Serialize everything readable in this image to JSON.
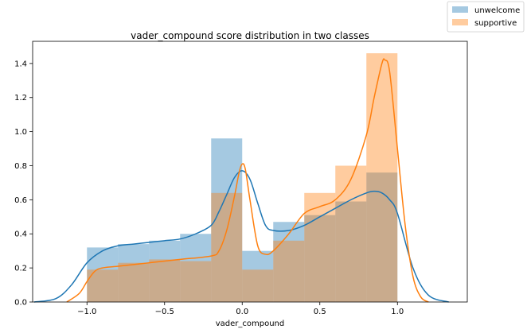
{
  "chart_data": {
    "type": "bar",
    "title": "vader_compound score distribution in two classes",
    "xlabel": "vader_compound",
    "ylabel": "",
    "xlim": [
      -1.35,
      1.45
    ],
    "ylim": [
      0,
      1.53
    ],
    "grid": false,
    "legend_position": "top-right (outside figure)",
    "xticks": [
      -1.0,
      -0.5,
      0.0,
      0.5,
      1.0
    ],
    "xtick_labels": [
      "−1.0",
      "−0.5",
      "0.0",
      "0.5",
      "1.0"
    ],
    "yticks": [
      0.0,
      0.2,
      0.4,
      0.6,
      0.8,
      1.0,
      1.2,
      1.4
    ],
    "ytick_labels": [
      "0.0",
      "0.2",
      "0.4",
      "0.6",
      "0.8",
      "1.0",
      "1.2",
      "1.4"
    ],
    "bin_edges": [
      -1.0,
      -0.8,
      -0.6,
      -0.4,
      -0.2,
      0.0,
      0.2,
      0.4,
      0.6,
      0.8,
      1.0
    ],
    "series": [
      {
        "name": "unwelcome",
        "color": "#1f77b4",
        "hist_values": [
          0.32,
          0.34,
          0.36,
          0.4,
          0.96,
          0.3,
          0.47,
          0.51,
          0.59,
          0.76
        ],
        "kde_x": [
          -1.34,
          -1.2,
          -1.1,
          -1.0,
          -0.9,
          -0.8,
          -0.7,
          -0.6,
          -0.5,
          -0.4,
          -0.3,
          -0.2,
          -0.15,
          -0.1,
          -0.05,
          0.0,
          0.05,
          0.1,
          0.15,
          0.2,
          0.3,
          0.4,
          0.5,
          0.6,
          0.7,
          0.8,
          0.85,
          0.9,
          0.95,
          1.0,
          1.1,
          1.2,
          1.33
        ],
        "kde_y": [
          0.0,
          0.02,
          0.1,
          0.23,
          0.3,
          0.33,
          0.34,
          0.35,
          0.36,
          0.37,
          0.4,
          0.45,
          0.53,
          0.63,
          0.73,
          0.77,
          0.72,
          0.58,
          0.45,
          0.42,
          0.42,
          0.45,
          0.5,
          0.55,
          0.6,
          0.64,
          0.65,
          0.64,
          0.6,
          0.52,
          0.2,
          0.04,
          0.0
        ]
      },
      {
        "name": "supportive",
        "color": "#ff7f0e",
        "hist_values": [
          0.19,
          0.23,
          0.25,
          0.24,
          0.64,
          0.19,
          0.36,
          0.64,
          0.8,
          1.46
        ],
        "kde_x": [
          -1.13,
          -1.05,
          -1.0,
          -0.95,
          -0.9,
          -0.8,
          -0.6,
          -0.4,
          -0.2,
          -0.15,
          -0.1,
          -0.05,
          -0.02,
          0.0,
          0.02,
          0.05,
          0.1,
          0.15,
          0.2,
          0.3,
          0.4,
          0.5,
          0.6,
          0.7,
          0.8,
          0.85,
          0.9,
          0.92,
          0.95,
          1.0,
          1.05,
          1.1,
          1.15,
          1.2
        ],
        "kde_y": [
          0.0,
          0.05,
          0.12,
          0.18,
          0.2,
          0.21,
          0.23,
          0.25,
          0.27,
          0.3,
          0.42,
          0.62,
          0.76,
          0.81,
          0.78,
          0.6,
          0.33,
          0.28,
          0.3,
          0.4,
          0.52,
          0.56,
          0.6,
          0.72,
          0.98,
          1.2,
          1.4,
          1.42,
          1.35,
          0.9,
          0.45,
          0.15,
          0.03,
          0.0
        ]
      }
    ]
  }
}
